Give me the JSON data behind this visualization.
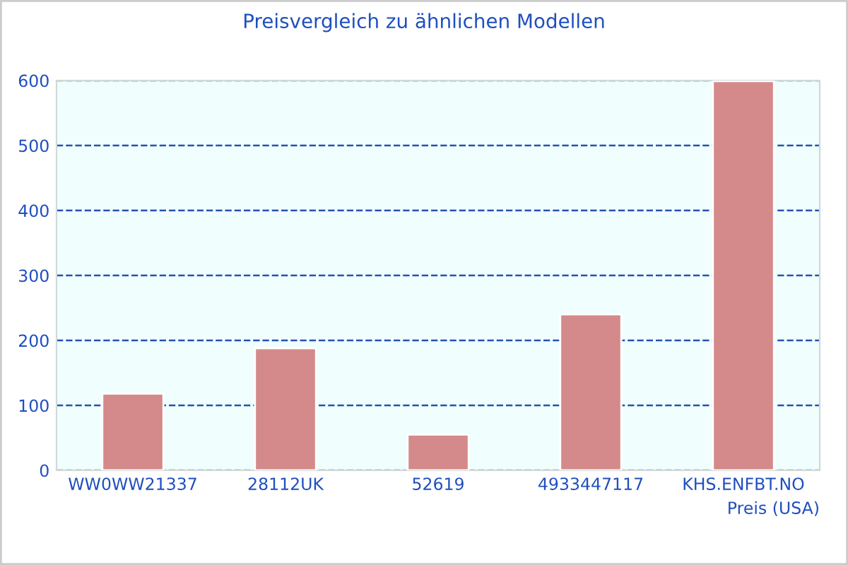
{
  "chart_data": {
    "type": "bar",
    "title": "Preisvergleich zu ähnlichen Modellen",
    "xlabel": "Preis (USA)",
    "categories": [
      "WW0WW21337",
      "28112UK",
      "52619",
      "4933447117",
      "KHS.ENFBT.NO"
    ],
    "values": [
      118,
      188,
      55,
      240,
      599
    ],
    "color": "#d48a8a",
    "ylim": [
      0,
      600
    ],
    "yticks": [
      0,
      100,
      200,
      300,
      400,
      500,
      600
    ],
    "grid": "y"
  }
}
